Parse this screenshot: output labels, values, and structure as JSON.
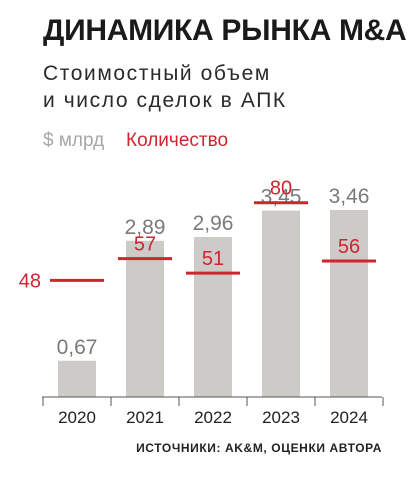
{
  "header": {
    "title": "ДИНАМИКА РЫНКА M&A",
    "subtitle_line1": "Стоимостный объем",
    "subtitle_line2": "и число сделок в АПК"
  },
  "legend": {
    "usd_label": "$ млрд",
    "count_label": "Количество"
  },
  "source": "ИСТОЧНИКИ: AK&M, ОЦЕНКИ АВТОРА",
  "colors": {
    "bar": "#cdcbc8",
    "value_text": "#7a7a7a",
    "count": "#d1242f",
    "axis": "#555555"
  },
  "chart_data": {
    "type": "bar",
    "categories": [
      "2020",
      "2021",
      "2022",
      "2023",
      "2024"
    ],
    "series": [
      {
        "name": "$ млрд",
        "values": [
          0.67,
          2.89,
          2.96,
          3.45,
          3.46
        ],
        "labels": [
          "0,67",
          "2,89",
          "2,96",
          "3,45",
          "3,46"
        ]
      },
      {
        "name": "Количество",
        "values": [
          48,
          57,
          51,
          80,
          56
        ],
        "labels": [
          "48",
          "57",
          "51",
          "80",
          "56"
        ]
      }
    ],
    "title": "ДИНАМИКА РЫНКА M&A",
    "grid": false,
    "legend_position": "top-left"
  }
}
